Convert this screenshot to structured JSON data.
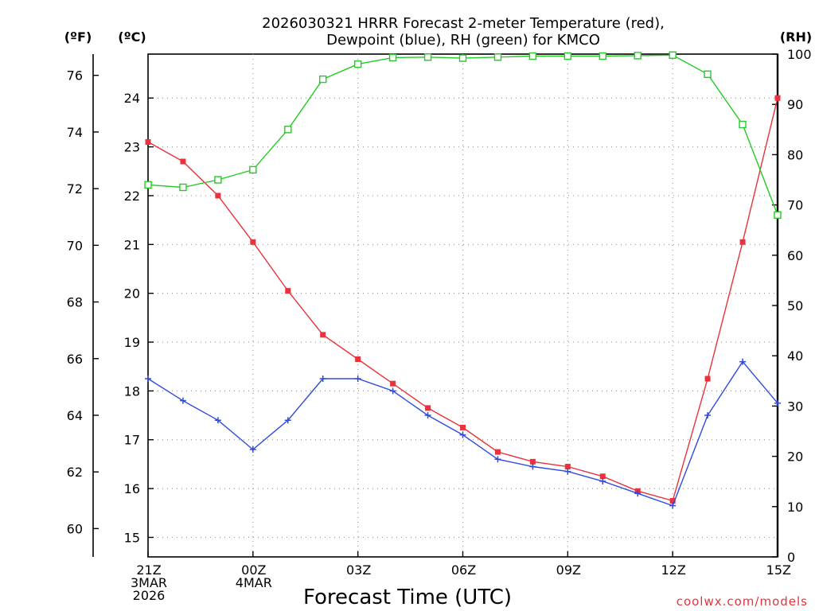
{
  "chart_data": {
    "type": "line",
    "title_line1": "2026030321 HRRR Forecast 2-meter Temperature (red),",
    "title_line2": "Dewpoint (blue), RH (green) for KMCO",
    "xlabel": "Forecast Time (UTC)",
    "credit": "coolwx.com/models",
    "axes": {
      "fahrenheit": {
        "unit_label": "(ºF)",
        "ticks": [
          60,
          62,
          64,
          66,
          68,
          70,
          72,
          74,
          76
        ],
        "range": [
          59.0,
          76.75
        ]
      },
      "celsius": {
        "unit_label": "(ºC)",
        "ticks": [
          15,
          16,
          17,
          18,
          19,
          20,
          21,
          22,
          23,
          24
        ],
        "range": [
          14.6,
          24.9
        ]
      },
      "rh": {
        "unit_label": "(RH)",
        "ticks": [
          0,
          10,
          20,
          30,
          40,
          50,
          60,
          70,
          80,
          90,
          100
        ],
        "range": [
          0,
          100
        ]
      }
    },
    "x_hours": [
      0,
      1,
      2,
      3,
      4,
      5,
      6,
      7,
      8,
      9,
      10,
      11,
      12,
      13,
      14,
      15,
      16,
      17,
      18
    ],
    "x_ticks": [
      {
        "hour": 0,
        "lines": [
          "21Z",
          "3MAR",
          "2026"
        ]
      },
      {
        "hour": 3,
        "lines": [
          "00Z",
          "4MAR"
        ]
      },
      {
        "hour": 6,
        "lines": [
          "03Z"
        ]
      },
      {
        "hour": 9,
        "lines": [
          "06Z"
        ]
      },
      {
        "hour": 12,
        "lines": [
          "09Z"
        ]
      },
      {
        "hour": 15,
        "lines": [
          "12Z"
        ]
      },
      {
        "hour": 18,
        "lines": [
          "15Z"
        ]
      }
    ],
    "series": [
      {
        "name": "Temperature",
        "color": "#e8323c",
        "axis": "celsius",
        "marker": "filled-square",
        "values": [
          23.1,
          22.7,
          22.0,
          21.05,
          20.05,
          19.15,
          18.65,
          18.15,
          17.65,
          17.25,
          16.75,
          16.55,
          16.45,
          16.25,
          15.95,
          15.75,
          18.25,
          21.05,
          24.0
        ]
      },
      {
        "name": "Dewpoint",
        "color": "#2f4be0",
        "axis": "celsius",
        "marker": "plus",
        "values": [
          18.25,
          17.8,
          17.4,
          16.8,
          17.4,
          18.25,
          18.25,
          18.0,
          17.5,
          17.1,
          16.6,
          16.45,
          16.35,
          16.15,
          15.9,
          15.65,
          17.5,
          18.6,
          17.75
        ]
      },
      {
        "name": "Relative Humidity",
        "color": "#22cc22",
        "axis": "rh",
        "marker": "open-square",
        "values": [
          74,
          73.5,
          75,
          77,
          85,
          95,
          98,
          99.3,
          99.4,
          99.2,
          99.4,
          99.6,
          99.6,
          99.6,
          99.7,
          99.8,
          96,
          86,
          68
        ]
      }
    ]
  }
}
